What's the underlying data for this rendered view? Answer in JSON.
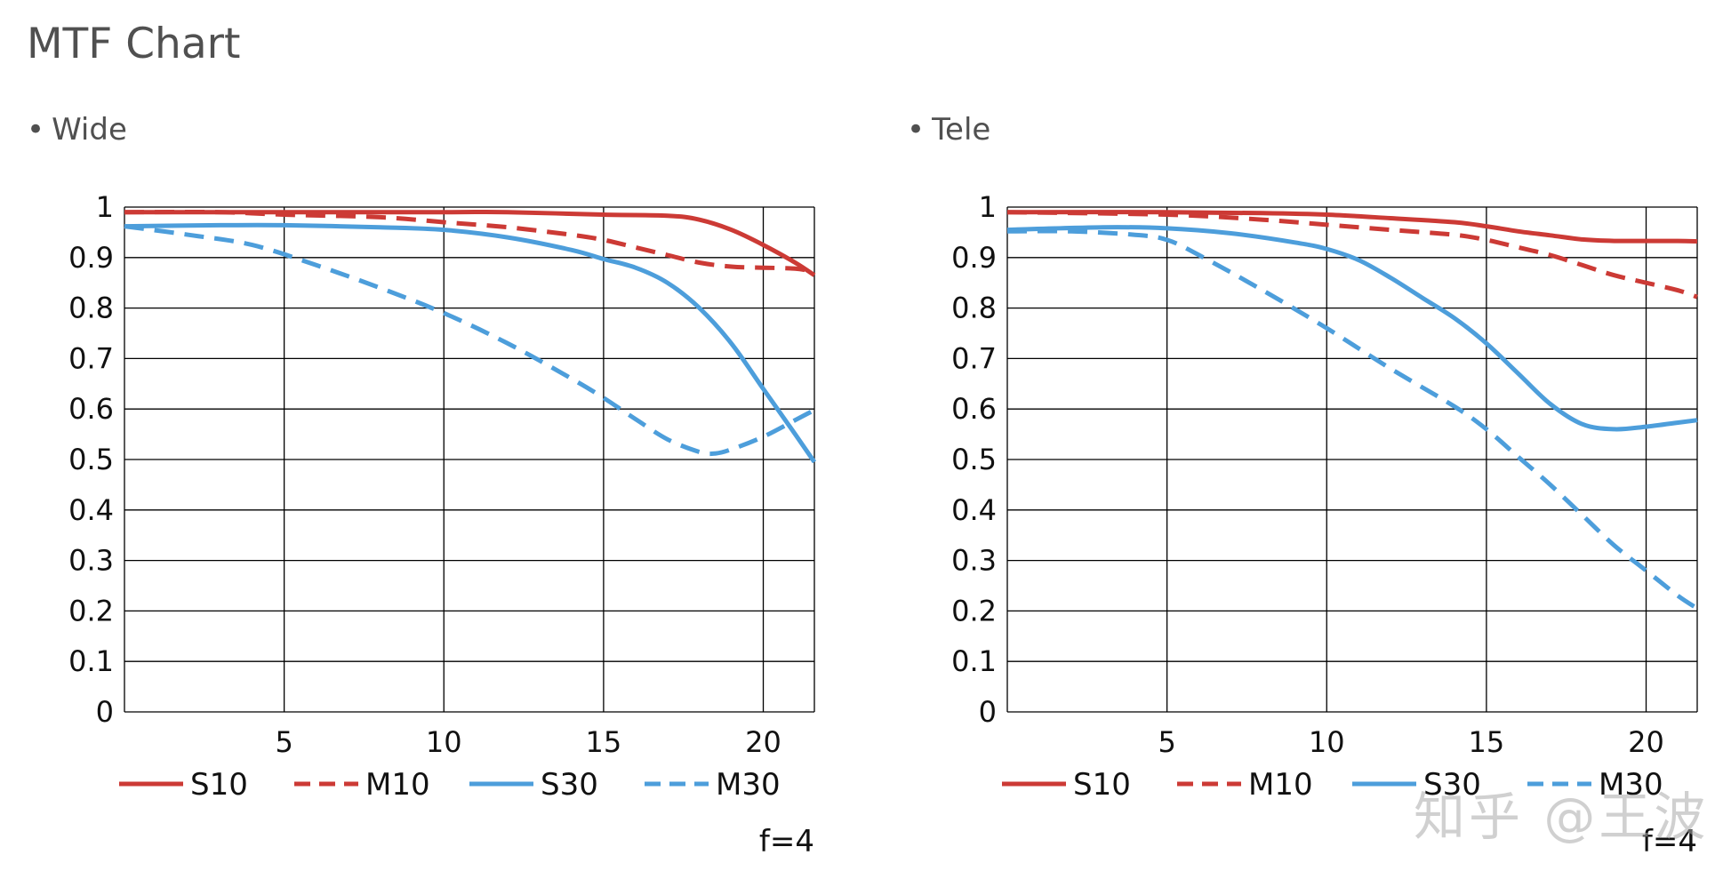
{
  "page": {
    "title": "MTF Chart",
    "watermark": "知乎 @王波"
  },
  "chart_data": [
    {
      "type": "line",
      "title": "Wide",
      "xlabel": "",
      "ylabel": "",
      "xlim": [
        0,
        21.6
      ],
      "ylim": [
        0,
        1
      ],
      "x_ticks": [
        "5",
        "10",
        "15",
        "20"
      ],
      "y_ticks": [
        "0",
        "0.1",
        "0.2",
        "0.3",
        "0.4",
        "0.5",
        "0.6",
        "0.7",
        "0.8",
        "0.9",
        "1"
      ],
      "grid": true,
      "legend_position": "bottom",
      "annotation": "f=4",
      "series": [
        {
          "name": "S10",
          "color": "#cc3a35",
          "dashed": false,
          "x": [
            0,
            5,
            10,
            12,
            15,
            17,
            18,
            19,
            20,
            21,
            21.6
          ],
          "y": [
            0.99,
            0.99,
            0.99,
            0.99,
            0.985,
            0.983,
            0.975,
            0.955,
            0.925,
            0.89,
            0.865
          ]
        },
        {
          "name": "M10",
          "color": "#cc3a35",
          "dashed": true,
          "x": [
            0,
            3,
            5,
            8,
            10,
            12,
            14,
            15,
            16,
            17,
            18,
            19,
            20,
            21,
            21.6
          ],
          "y": [
            0.99,
            0.99,
            0.985,
            0.98,
            0.97,
            0.96,
            0.945,
            0.935,
            0.92,
            0.905,
            0.89,
            0.882,
            0.88,
            0.878,
            0.872
          ]
        },
        {
          "name": "S30",
          "color": "#4d9edb",
          "dashed": false,
          "x": [
            0,
            3,
            5,
            8,
            10,
            12,
            14,
            15,
            16,
            17,
            18,
            19,
            20,
            21,
            21.6
          ],
          "y": [
            0.962,
            0.964,
            0.964,
            0.96,
            0.955,
            0.94,
            0.915,
            0.897,
            0.88,
            0.85,
            0.8,
            0.73,
            0.64,
            0.55,
            0.495
          ]
        },
        {
          "name": "M30",
          "color": "#4d9edb",
          "dashed": true,
          "x": [
            0,
            2,
            4,
            6,
            8,
            10,
            12,
            14,
            15,
            16,
            17,
            18,
            18.5,
            19,
            20,
            21,
            21.6
          ],
          "y": [
            0.962,
            0.945,
            0.925,
            0.885,
            0.84,
            0.79,
            0.73,
            0.66,
            0.622,
            0.58,
            0.54,
            0.515,
            0.512,
            0.52,
            0.545,
            0.578,
            0.598
          ]
        }
      ]
    },
    {
      "type": "line",
      "title": "Tele",
      "xlabel": "",
      "ylabel": "",
      "xlim": [
        0,
        21.6
      ],
      "ylim": [
        0,
        1
      ],
      "x_ticks": [
        "5",
        "10",
        "15",
        "20"
      ],
      "y_ticks": [
        "0",
        "0.1",
        "0.2",
        "0.3",
        "0.4",
        "0.5",
        "0.6",
        "0.7",
        "0.8",
        "0.9",
        "1"
      ],
      "grid": true,
      "legend_position": "bottom",
      "annotation": "f=4",
      "series": [
        {
          "name": "S10",
          "color": "#cc3a35",
          "dashed": false,
          "x": [
            0,
            5,
            8,
            10,
            12,
            14,
            15,
            16,
            17,
            18,
            19,
            20,
            21,
            21.6
          ],
          "y": [
            0.99,
            0.99,
            0.988,
            0.985,
            0.978,
            0.97,
            0.962,
            0.952,
            0.944,
            0.936,
            0.933,
            0.933,
            0.933,
            0.932
          ]
        },
        {
          "name": "M10",
          "color": "#cc3a35",
          "dashed": true,
          "x": [
            0,
            5,
            8,
            10,
            12,
            14,
            15,
            16,
            17,
            18,
            19,
            20,
            21,
            21.6
          ],
          "y": [
            0.99,
            0.985,
            0.975,
            0.965,
            0.955,
            0.945,
            0.935,
            0.92,
            0.905,
            0.885,
            0.865,
            0.85,
            0.835,
            0.822
          ]
        },
        {
          "name": "S30",
          "color": "#4d9edb",
          "dashed": false,
          "x": [
            0,
            3,
            5,
            7,
            9,
            10,
            11,
            12,
            13,
            14,
            15,
            16,
            17,
            18,
            19,
            20,
            21,
            21.6
          ],
          "y": [
            0.955,
            0.96,
            0.958,
            0.948,
            0.93,
            0.917,
            0.895,
            0.86,
            0.82,
            0.78,
            0.73,
            0.67,
            0.61,
            0.57,
            0.56,
            0.565,
            0.573,
            0.578
          ]
        },
        {
          "name": "M30",
          "color": "#4d9edb",
          "dashed": true,
          "x": [
            0,
            2,
            4,
            5,
            6,
            8,
            10,
            12,
            14,
            15,
            16,
            17,
            18,
            19,
            20,
            21,
            21.6
          ],
          "y": [
            0.952,
            0.952,
            0.945,
            0.935,
            0.905,
            0.835,
            0.76,
            0.68,
            0.605,
            0.56,
            0.505,
            0.45,
            0.39,
            0.33,
            0.28,
            0.23,
            0.205
          ]
        }
      ]
    }
  ]
}
